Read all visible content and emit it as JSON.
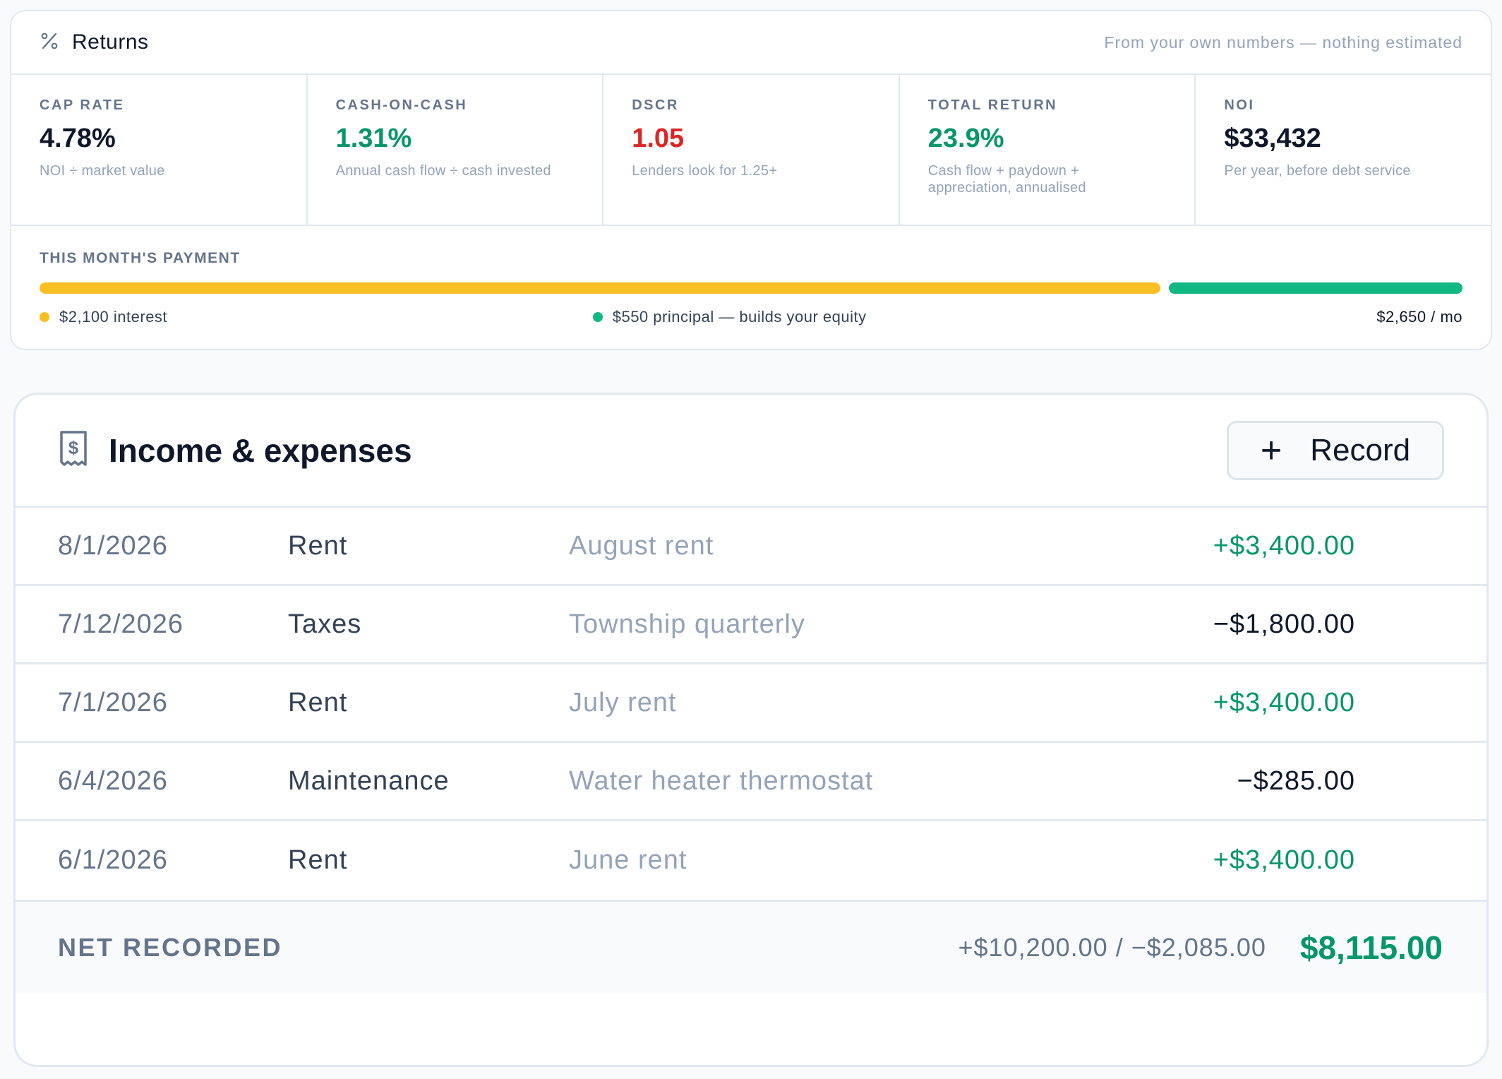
{
  "returns": {
    "title": "Returns",
    "icon": "percent-icon",
    "note": "From your own numbers — nothing estimated",
    "metrics": [
      {
        "label": "CAP RATE",
        "value": "4.78%",
        "sub": "NOI ÷ market value",
        "tone": "neutral"
      },
      {
        "label": "CASH-ON-CASH",
        "value": "1.31%",
        "sub": "Annual cash flow ÷ cash invested",
        "tone": "green"
      },
      {
        "label": "DSCR",
        "value": "1.05",
        "sub": "Lenders look for 1.25+",
        "tone": "red"
      },
      {
        "label": "TOTAL RETURN",
        "value": "23.9%",
        "sub": "Cash flow + paydown + appreciation, annualised",
        "tone": "green"
      },
      {
        "label": "NOI",
        "value": "$33,432",
        "sub": "Per year, before debt service",
        "tone": "neutral"
      }
    ],
    "payment": {
      "label": "THIS MONTH'S PAYMENT",
      "interest_label": "$2,100 interest",
      "principal_label": "$550 principal — builds your equity",
      "total_label": "$2,650 / mo",
      "interest_amount": 2100,
      "principal_amount": 550,
      "interest_color": "#fbbf24",
      "principal_color": "#10b981"
    }
  },
  "income": {
    "title": "Income & expenses",
    "icon": "receipt-dollar-icon",
    "record_button": "Record",
    "rows": [
      {
        "date": "8/1/2026",
        "category": "Rent",
        "note": "August rent",
        "amount": "+$3,400.00",
        "sign": "pos"
      },
      {
        "date": "7/12/2026",
        "category": "Taxes",
        "note": "Township quarterly",
        "amount": "−$1,800.00",
        "sign": "neg"
      },
      {
        "date": "7/1/2026",
        "category": "Rent",
        "note": "July rent",
        "amount": "+$3,400.00",
        "sign": "pos"
      },
      {
        "date": "6/4/2026",
        "category": "Maintenance",
        "note": "Water heater thermostat",
        "amount": "−$285.00",
        "sign": "neg"
      },
      {
        "date": "6/1/2026",
        "category": "Rent",
        "note": "June rent",
        "amount": "+$3,400.00",
        "sign": "pos"
      }
    ],
    "net": {
      "label": "NET RECORDED",
      "breakdown": "+$10,200.00 / −$2,085.00",
      "total": "$8,115.00"
    }
  },
  "colors": {
    "positive": "#059669",
    "negative_text": "#0f172a",
    "warning": "#dc2626"
  }
}
